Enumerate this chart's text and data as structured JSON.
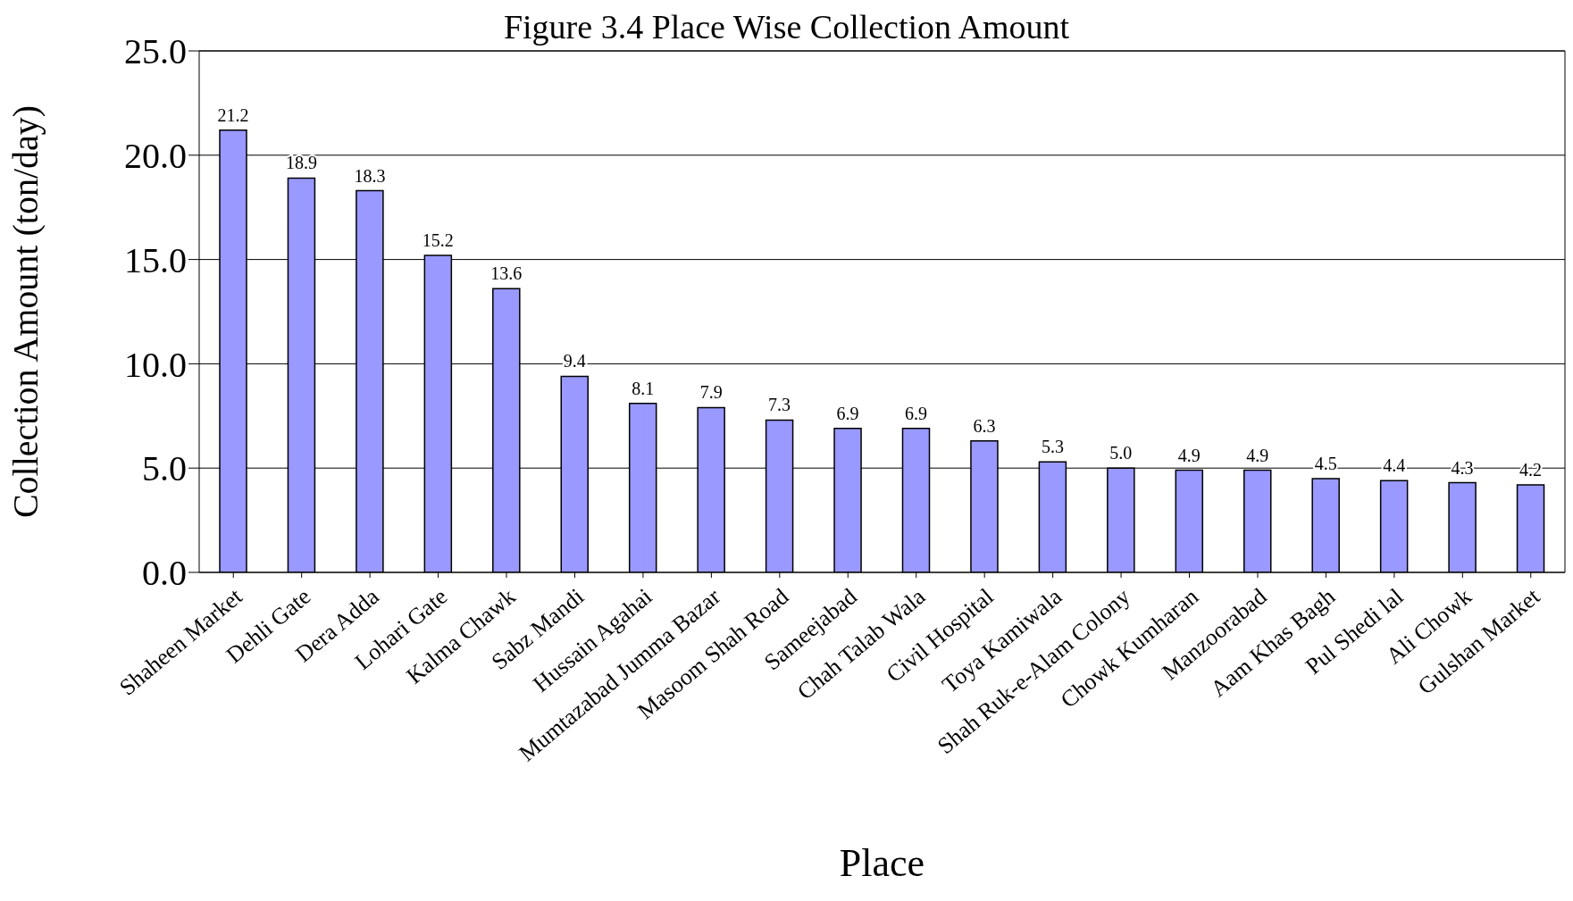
{
  "chart_data": {
    "type": "bar",
    "title": "Figure 3.4 Place Wise Collection Amount",
    "xlabel": "Place",
    "ylabel": "Collection Amount (ton/day)",
    "categories": [
      "Shaheen Market",
      "Dehli Gate",
      "Dera Adda",
      "Lohari Gate",
      "Kalma Chawk",
      "Sabz Mandi",
      "Hussain Agahai",
      "Mumtazabad Jumma Bazar",
      "Masoom Shah Road",
      "Sameejabad",
      "Chah Talab Wala",
      "Civil Hospital",
      "Toya Kamiwala",
      "Shah Ruk-e-Alam Colony",
      "Chowk Kumharan",
      "Manzoorabad",
      "Aam Khas Bagh",
      "Pul Shedi lal",
      "Ali Chowk",
      "Gulshan Market"
    ],
    "values": [
      21.2,
      18.9,
      18.3,
      15.2,
      13.6,
      9.4,
      8.1,
      7.9,
      7.3,
      6.9,
      6.9,
      6.3,
      5.3,
      5.0,
      4.9,
      4.9,
      4.5,
      4.4,
      4.3,
      4.2
    ],
    "value_labels": [
      "21.2",
      "18.9",
      "18.3",
      "15.2",
      "13.6",
      "9.4",
      "8.1",
      "7.9",
      "7.3",
      "6.9",
      "6.9",
      "6.3",
      "5.3",
      "5.0",
      "4.9",
      "4.9",
      "4.5",
      "4.4",
      "4.3",
      "4.2"
    ],
    "color": "#9999ff",
    "ylim": [
      0,
      25
    ],
    "yticks": [
      {
        "value": 0,
        "label": "0.0"
      },
      {
        "value": 5,
        "label": "5.0"
      },
      {
        "value": 10,
        "label": "10.0"
      },
      {
        "value": 15,
        "label": "15.0"
      },
      {
        "value": 20,
        "label": "20.0"
      },
      {
        "value": 25,
        "label": "25.0"
      }
    ],
    "grid": "y",
    "legend": false
  }
}
